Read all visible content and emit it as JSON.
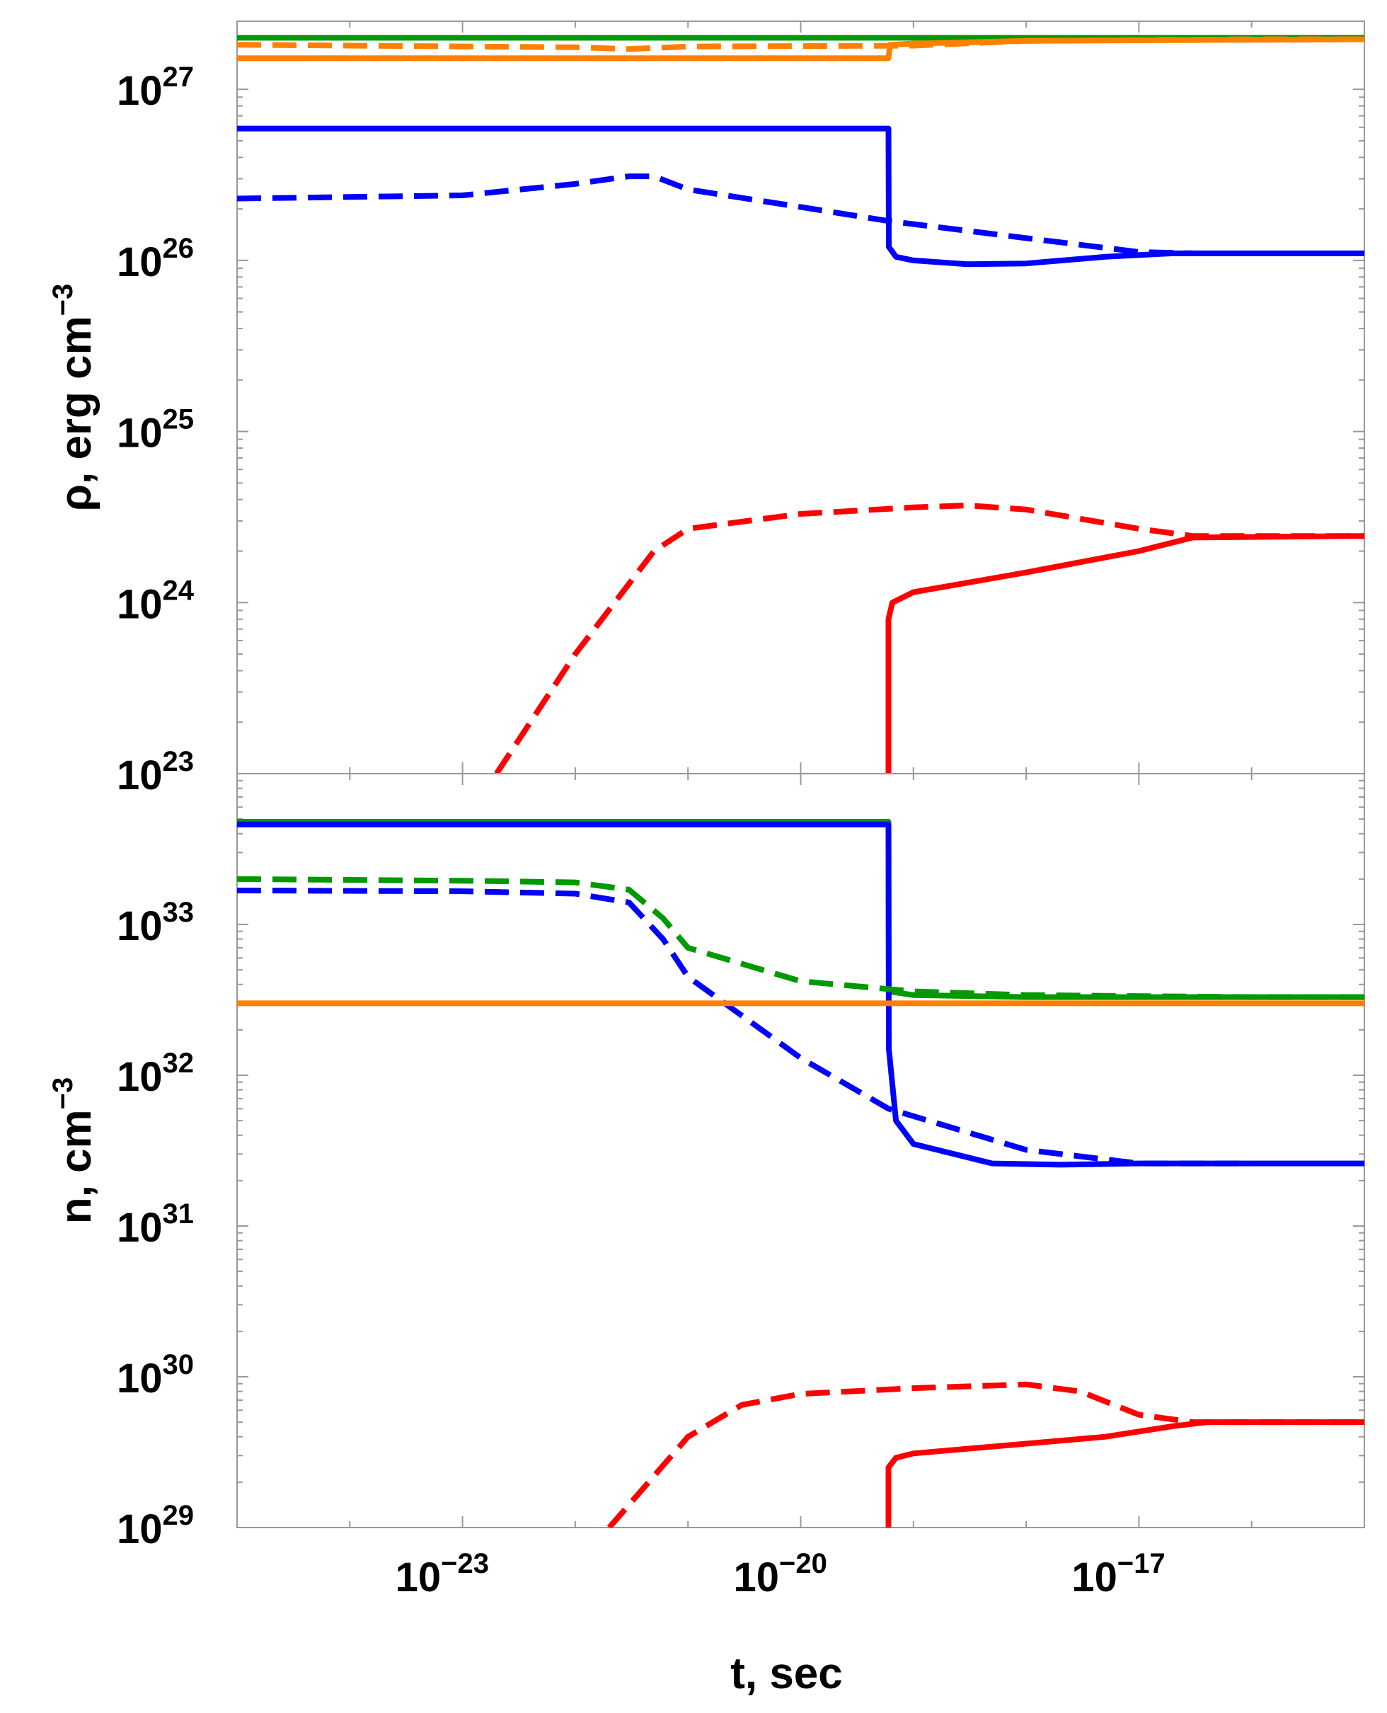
{
  "colors": {
    "red": "#ff0000",
    "blue": "#0000ff",
    "orange": "#ff8000",
    "green": "#009900",
    "frame": "#999999"
  },
  "chart_data": [
    {
      "type": "line",
      "panel": "top",
      "ylabel": {
        "base": "ρ, erg cm",
        "exponent": "−3"
      },
      "xlabel": "",
      "x_scale": "log",
      "y_scale": "log",
      "xlim": [
        1e-25,
        1e-15
      ],
      "ylim": [
        1e+23,
        2.5e+27
      ],
      "grid": false,
      "legend": "none",
      "y_ticks": [
        {
          "value": 1e+23,
          "base": "10",
          "exp": "23"
        },
        {
          "value": 1e+24,
          "base": "10",
          "exp": "24"
        },
        {
          "value": 1e+25,
          "base": "10",
          "exp": "25"
        },
        {
          "value": 1e+26,
          "base": "10",
          "exp": "26"
        },
        {
          "value": 1e+27,
          "base": "10",
          "exp": "27"
        }
      ],
      "series": [
        {
          "color": "green",
          "dash": false,
          "points": [
            [
              1e-25,
              2e+27
            ],
            [
              1e-15,
              2e+27
            ]
          ]
        },
        {
          "color": "orange",
          "dash": true,
          "points": [
            [
              1e-25,
              1.82e+27
            ],
            [
              1e-22,
              1.76e+27
            ],
            [
              3e-22,
              1.72e+27
            ],
            [
              1e-21,
              1.78e+27
            ],
            [
              1e-19,
              1.8e+27
            ],
            [
              1e-18,
              1.92e+27
            ],
            [
              1e-16,
              1.96e+27
            ],
            [
              1e-15,
              1.96e+27
            ]
          ]
        },
        {
          "color": "orange",
          "dash": false,
          "points": [
            [
              1e-25,
              1.52e+27
            ],
            [
              6e-20,
              1.52e+27
            ],
            [
              6e-20,
              1.52e+27
            ],
            [
              6.2e-20,
              1.82e+27
            ],
            [
              1e-19,
              1.85e+27
            ],
            [
              1e-18,
              1.92e+27
            ],
            [
              1e-15,
              1.96e+27
            ]
          ]
        },
        {
          "color": "blue",
          "dash": false,
          "points": [
            [
              1e-25,
              5.9e+26
            ],
            [
              6e-20,
              5.9e+26
            ],
            [
              6.05e-20,
              1.2e+26
            ],
            [
              7e-20,
              1.05e+26
            ],
            [
              1e-19,
              1e+26
            ],
            [
              3e-19,
              9.5e+25
            ],
            [
              1e-18,
              9.6e+25
            ],
            [
              5e-18,
              1.05e+26
            ],
            [
              2e-17,
              1.1e+26
            ],
            [
              1e-15,
              1.1e+26
            ]
          ]
        },
        {
          "color": "blue",
          "dash": true,
          "points": [
            [
              1e-25,
              2.3e+26
            ],
            [
              1e-23,
              2.4e+26
            ],
            [
              1e-22,
              2.8e+26
            ],
            [
              3e-22,
              3.1e+26
            ],
            [
              5e-22,
              3.1e+26
            ],
            [
              1e-21,
              2.6e+26
            ],
            [
              1e-20,
              2.05e+26
            ],
            [
              6e-20,
              1.7e+26
            ],
            [
              1e-18,
              1.35e+26
            ],
            [
              1e-17,
              1.12e+26
            ],
            [
              3e-17,
              1.1e+26
            ]
          ]
        },
        {
          "color": "red",
          "dash": true,
          "points": [
            [
              2e-23,
              1e+23
            ],
            [
              1e-22,
              5e+23
            ],
            [
              5e-22,
              2e+24
            ],
            [
              1e-21,
              2.7e+24
            ],
            [
              1e-20,
              3.3e+24
            ],
            [
              1e-19,
              3.6e+24
            ],
            [
              3e-19,
              3.7e+24
            ],
            [
              1e-18,
              3.5e+24
            ],
            [
              1e-17,
              2.7e+24
            ],
            [
              3e-17,
              2.45e+24
            ],
            [
              1e-15,
              2.45e+24
            ]
          ]
        },
        {
          "color": "red",
          "dash": false,
          "points": [
            [
              6e-20,
              1e+23
            ],
            [
              6e-20,
              8e+23
            ],
            [
              6.5e-20,
              1e+24
            ],
            [
              1e-19,
              1.15e+24
            ],
            [
              1e-18,
              1.5e+24
            ],
            [
              1e-17,
              2e+24
            ],
            [
              3e-17,
              2.4e+24
            ],
            [
              1e-15,
              2.45e+24
            ]
          ]
        }
      ]
    },
    {
      "type": "line",
      "panel": "bottom",
      "ylabel": {
        "base": "n, cm",
        "exponent": "−3"
      },
      "xlabel": "t, sec",
      "x_scale": "log",
      "y_scale": "log",
      "xlim": [
        1e-25,
        1e-15
      ],
      "ylim": [
        1e+29,
        1e+34
      ],
      "grid": false,
      "legend": "none",
      "x_ticks": [
        {
          "value": 1e-23,
          "base": "10",
          "exp": "−23"
        },
        {
          "value": 1e-20,
          "base": "10",
          "exp": "−20"
        },
        {
          "value": 1e-17,
          "base": "10",
          "exp": "−17"
        }
      ],
      "y_ticks": [
        {
          "value": 1e+29,
          "base": "10",
          "exp": "29"
        },
        {
          "value": 1e+30,
          "base": "10",
          "exp": "30"
        },
        {
          "value": 1e+31,
          "base": "10",
          "exp": "31"
        },
        {
          "value": 1e+32,
          "base": "10",
          "exp": "32"
        },
        {
          "value": 1e+33,
          "base": "10",
          "exp": "33"
        }
      ],
      "series": [
        {
          "color": "green",
          "dash": false,
          "points": [
            [
              1e-25,
              4.8e+33
            ],
            [
              6e-20,
              4.8e+33
            ],
            [
              6.05e-20,
              3.6e+32
            ],
            [
              1e-19,
              3.4e+32
            ],
            [
              1e-18,
              3.3e+32
            ],
            [
              1e-15,
              3.3e+32
            ]
          ]
        },
        {
          "color": "blue",
          "dash": false,
          "points": [
            [
              1e-25,
              4.6e+33
            ],
            [
              6e-20,
              4.6e+33
            ],
            [
              6.05e-20,
              1.5e+32
            ],
            [
              7e-20,
              5e+31
            ],
            [
              1e-19,
              3.5e+31
            ],
            [
              5e-19,
              2.6e+31
            ],
            [
              2e-18,
              2.55e+31
            ],
            [
              1e-17,
              2.6e+31
            ],
            [
              1e-15,
              2.6e+31
            ]
          ]
        },
        {
          "color": "green",
          "dash": true,
          "points": [
            [
              1e-25,
              2e+33
            ],
            [
              1e-23,
              1.95e+33
            ],
            [
              1e-22,
              1.9e+33
            ],
            [
              3e-22,
              1.7e+33
            ],
            [
              6e-22,
              1.1e+33
            ],
            [
              1e-21,
              7e+32
            ],
            [
              1e-20,
              4.2e+32
            ],
            [
              1e-19,
              3.6e+32
            ],
            [
              1e-18,
              3.4e+32
            ],
            [
              1e-16,
              3.3e+32
            ],
            [
              1e-15,
              3.3e+32
            ]
          ]
        },
        {
          "color": "blue",
          "dash": true,
          "points": [
            [
              1e-25,
              1.68e+33
            ],
            [
              1e-23,
              1.66e+33
            ],
            [
              1e-22,
              1.6e+33
            ],
            [
              3e-22,
              1.4e+33
            ],
            [
              6e-22,
              8e+32
            ],
            [
              1e-21,
              4.5e+32
            ],
            [
              1e-20,
              1.3e+32
            ],
            [
              6e-20,
              6e+31
            ],
            [
              1e-18,
              3.2e+31
            ],
            [
              1e-17,
              2.6e+31
            ],
            [
              1e-16,
              2.6e+31
            ]
          ]
        },
        {
          "color": "orange",
          "dash": false,
          "points": [
            [
              1e-25,
              3e+32
            ],
            [
              1e-15,
              3e+32
            ]
          ]
        },
        {
          "color": "red",
          "dash": true,
          "points": [
            [
              2e-22,
              1e+29
            ],
            [
              1e-21,
              4e+29
            ],
            [
              3e-21,
              6.5e+29
            ],
            [
              1e-20,
              7.7e+29
            ],
            [
              1e-19,
              8.4e+29
            ],
            [
              1e-18,
              8.9e+29
            ],
            [
              3e-18,
              8e+29
            ],
            [
              1e-17,
              5.6e+29
            ],
            [
              3e-17,
              5e+29
            ],
            [
              1e-15,
              5e+29
            ]
          ]
        },
        {
          "color": "red",
          "dash": false,
          "points": [
            [
              6e-20,
              1e+29
            ],
            [
              6e-20,
              2.5e+29
            ],
            [
              7e-20,
              2.9e+29
            ],
            [
              1e-19,
              3.1e+29
            ],
            [
              1e-18,
              3.6e+29
            ],
            [
              5e-18,
              4e+29
            ],
            [
              2e-17,
              4.7e+29
            ],
            [
              4e-17,
              5e+29
            ],
            [
              1e-15,
              5e+29
            ]
          ]
        }
      ]
    }
  ]
}
